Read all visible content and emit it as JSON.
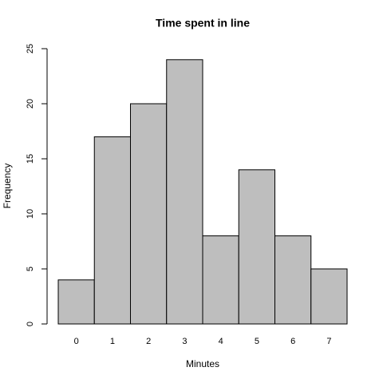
{
  "chart_data": {
    "type": "bar",
    "title": "Time spent in line",
    "x_label": "Minutes",
    "y_label": "Frequency",
    "categories": [
      "0",
      "1",
      "2",
      "3",
      "4",
      "5",
      "6",
      "7"
    ],
    "values": [
      4,
      17,
      20,
      24,
      8,
      14,
      8,
      5
    ],
    "color": "#bebebe",
    "ylim": [
      0,
      25
    ],
    "yticks": [
      0,
      5,
      10,
      15,
      20,
      25
    ]
  }
}
